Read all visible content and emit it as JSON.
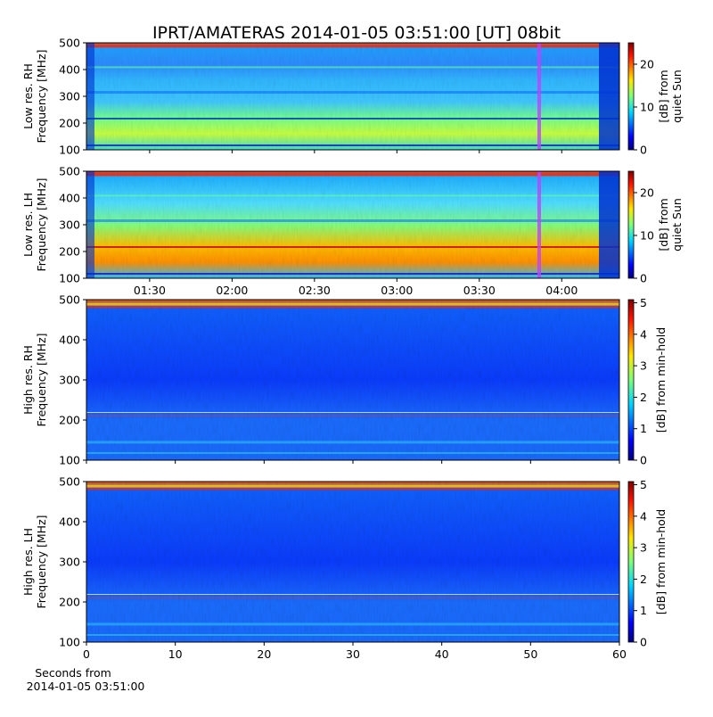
{
  "chart_data": [
    {
      "type": "heatmap",
      "title": "IPRT/AMATERAS 2014-01-05 03:51:00 [UT]   08bit",
      "ylabel": [
        "Low res. RH",
        "Frequency [MHz]"
      ],
      "ylim": [
        100,
        500
      ],
      "yticks": [
        100,
        200,
        300,
        400,
        500
      ],
      "xlim": [
        67,
        261
      ],
      "clabel": [
        "[dB] from",
        "quiet Sun"
      ],
      "clim": [
        0,
        25
      ],
      "cticks": [
        0,
        10,
        20
      ]
    },
    {
      "type": "heatmap",
      "ylabel": [
        "Low res. LH",
        "Frequency [MHz]"
      ],
      "ylim": [
        100,
        500
      ],
      "yticks": [
        100,
        200,
        300,
        400,
        500
      ],
      "xlim": [
        67,
        261
      ],
      "xticks": [
        {
          "value": 90,
          "label": "01:30"
        },
        {
          "value": 120,
          "label": "02:00"
        },
        {
          "value": 150,
          "label": "02:30"
        },
        {
          "value": 180,
          "label": "03:00"
        },
        {
          "value": 210,
          "label": "03:30"
        },
        {
          "value": 240,
          "label": "04:00"
        }
      ],
      "clabel": [
        "[dB] from",
        "quiet Sun"
      ],
      "clim": [
        0,
        25
      ],
      "cticks": [
        0,
        10,
        20
      ]
    },
    {
      "type": "heatmap",
      "ylabel": [
        "High res. RH",
        "Frequency [MHz]"
      ],
      "ylim": [
        100,
        500
      ],
      "yticks": [
        100,
        200,
        300,
        400,
        500
      ],
      "xlim": [
        0,
        60
      ],
      "clabel": [
        "[dB] from min-hold"
      ],
      "clim": [
        0,
        5.1
      ],
      "cticks": [
        0,
        1,
        2,
        3,
        4,
        5
      ]
    },
    {
      "type": "heatmap",
      "ylabel": [
        "High res. LH",
        "Frequency [MHz]"
      ],
      "ylim": [
        100,
        500
      ],
      "yticks": [
        100,
        200,
        300,
        400,
        500
      ],
      "xlim": [
        0,
        60
      ],
      "xticks": [
        0,
        10,
        20,
        30,
        40,
        50,
        60
      ],
      "xlabel": [
        "Seconds from",
        "2014-01-05 03:51:00"
      ],
      "clabel": [
        "[dB] from min-hold"
      ],
      "clim": [
        0,
        5.1
      ],
      "cticks": [
        0,
        1,
        2,
        3,
        4,
        5
      ]
    }
  ]
}
